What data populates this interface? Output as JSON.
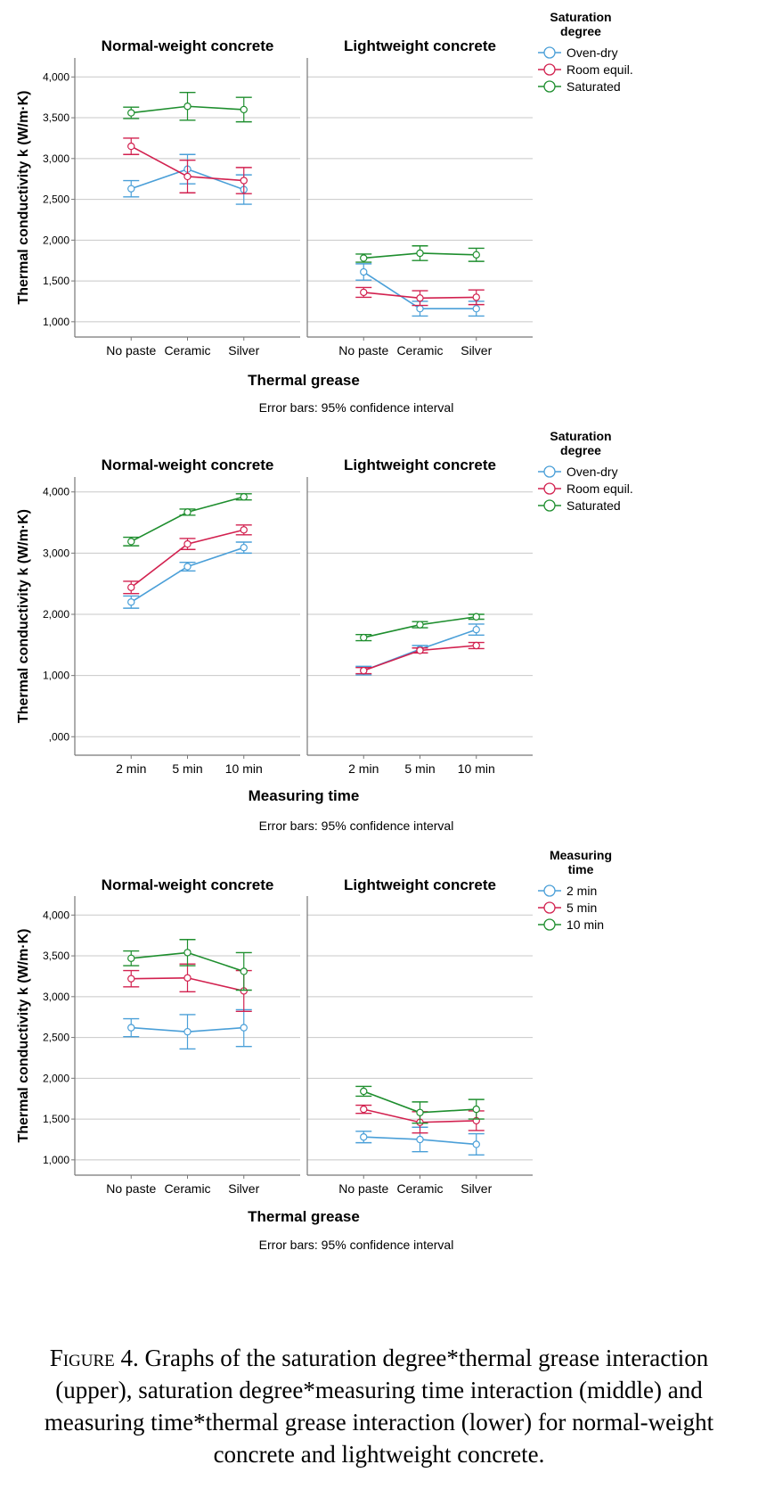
{
  "caption": {
    "label": "Figure 4.",
    "text": "Graphs of the saturation degree*thermal grease interaction (upper), saturation degree*measuring time interaction (middle) and measuring time*thermal grease interaction (lower) for normal-weight concrete and lightweight concrete."
  },
  "colors": {
    "blue": "#4a9fd8",
    "red": "#d2214f",
    "green": "#1e8e2e",
    "grid": "#c8c8c8",
    "axis": "#777777"
  },
  "chart_data": [
    {
      "type": "line",
      "ylabel": "Thermal conductivity k (W/m·K)",
      "xlabel": "Thermal grease",
      "footnote": "Error bars: 95% confidence interval",
      "legend_title": [
        "Saturation",
        "degree"
      ],
      "legend": [
        "Oven-dry",
        "Room equil.",
        "Saturated"
      ],
      "ylim": [
        900,
        4200
      ],
      "yticks": [
        1000,
        1500,
        2000,
        2500,
        3000,
        3500,
        4000
      ],
      "ytick_labels": [
        "1,000",
        "1,500",
        "2,000",
        "2,500",
        "3,000",
        "3,500",
        "4,000"
      ],
      "categories": [
        "No paste",
        "Ceramic",
        "Silver"
      ],
      "panels": [
        {
          "title": "Normal-weight concrete",
          "series": [
            {
              "name": "Oven-dry",
              "values": [
                2630,
                2870,
                2620
              ],
              "lo": [
                2530,
                2690,
                2440
              ],
              "hi": [
                2730,
                3050,
                2800
              ]
            },
            {
              "name": "Room equil.",
              "values": [
                3150,
                2780,
                2730
              ],
              "lo": [
                3050,
                2580,
                2570
              ],
              "hi": [
                3250,
                2980,
                2890
              ]
            },
            {
              "name": "Saturated",
              "values": [
                3560,
                3640,
                3600
              ],
              "lo": [
                3490,
                3470,
                3450
              ],
              "hi": [
                3630,
                3810,
                3750
              ]
            }
          ]
        },
        {
          "title": "Lightweight concrete",
          "series": [
            {
              "name": "Oven-dry",
              "values": [
                1610,
                1160,
                1160
              ],
              "lo": [
                1510,
                1070,
                1070
              ],
              "hi": [
                1710,
                1250,
                1250
              ]
            },
            {
              "name": "Room equil.",
              "values": [
                1360,
                1290,
                1300
              ],
              "lo": [
                1300,
                1200,
                1210
              ],
              "hi": [
                1420,
                1380,
                1390
              ]
            },
            {
              "name": "Saturated",
              "values": [
                1780,
                1840,
                1820
              ],
              "lo": [
                1730,
                1750,
                1740
              ],
              "hi": [
                1830,
                1930,
                1900
              ]
            }
          ]
        }
      ]
    },
    {
      "type": "line",
      "ylabel": "Thermal conductivity k (W/m·K)",
      "xlabel": "Measuring time",
      "footnote": "Error bars: 95% confidence interval",
      "legend_title": [
        "Saturation",
        "degree"
      ],
      "legend": [
        "Oven-dry",
        "Room equil.",
        "Saturated"
      ],
      "ylim": [
        -200,
        4200
      ],
      "yticks": [
        0,
        1000,
        2000,
        3000,
        4000
      ],
      "ytick_labels": [
        ",000",
        "1,000",
        "2,000",
        "3,000",
        "4,000"
      ],
      "categories": [
        "2 min",
        "5 min",
        "10 min"
      ],
      "panels": [
        {
          "title": "Normal-weight concrete",
          "series": [
            {
              "name": "Oven-dry",
              "values": [
                2200,
                2780,
                3090
              ],
              "lo": [
                2100,
                2710,
                3000
              ],
              "hi": [
                2300,
                2850,
                3180
              ]
            },
            {
              "name": "Room equil.",
              "values": [
                2440,
                3150,
                3380
              ],
              "lo": [
                2340,
                3060,
                3300
              ],
              "hi": [
                2540,
                3240,
                3460
              ]
            },
            {
              "name": "Saturated",
              "values": [
                3190,
                3670,
                3920
              ],
              "lo": [
                3120,
                3620,
                3870
              ],
              "hi": [
                3260,
                3720,
                3970
              ]
            }
          ]
        },
        {
          "title": "Lightweight concrete",
          "series": [
            {
              "name": "Oven-dry",
              "values": [
                1080,
                1430,
                1750
              ],
              "lo": [
                1010,
                1370,
                1660
              ],
              "hi": [
                1150,
                1490,
                1840
              ]
            },
            {
              "name": "Room equil.",
              "values": [
                1080,
                1410,
                1490
              ],
              "lo": [
                1030,
                1370,
                1440
              ],
              "hi": [
                1130,
                1450,
                1540
              ]
            },
            {
              "name": "Saturated",
              "values": [
                1620,
                1830,
                1960
              ],
              "lo": [
                1570,
                1780,
                1920
              ],
              "hi": [
                1670,
                1880,
                2000
              ]
            }
          ]
        }
      ]
    },
    {
      "type": "line",
      "ylabel": "Thermal conductivity k (W/m·K)",
      "xlabel": "Thermal grease",
      "footnote": "Error bars: 95% confidence interval",
      "legend_title": [
        "Measuring",
        "time"
      ],
      "legend": [
        "2 min",
        "5 min",
        "10 min"
      ],
      "ylim": [
        900,
        4200
      ],
      "yticks": [
        1000,
        1500,
        2000,
        2500,
        3000,
        3500,
        4000
      ],
      "ytick_labels": [
        "1,000",
        "1,500",
        "2,000",
        "2,500",
        "3,000",
        "3,500",
        "4,000"
      ],
      "categories": [
        "No paste",
        "Ceramic",
        "Silver"
      ],
      "panels": [
        {
          "title": "Normal-weight concrete",
          "series": [
            {
              "name": "2 min",
              "values": [
                2620,
                2570,
                2620
              ],
              "lo": [
                2510,
                2360,
                2390
              ],
              "hi": [
                2730,
                2780,
                2840
              ]
            },
            {
              "name": "5 min",
              "values": [
                3220,
                3230,
                3070
              ],
              "lo": [
                3120,
                3060,
                2820
              ],
              "hi": [
                3320,
                3400,
                3320
              ]
            },
            {
              "name": "10 min",
              "values": [
                3470,
                3540,
                3310
              ],
              "lo": [
                3380,
                3380,
                3080
              ],
              "hi": [
                3560,
                3700,
                3540
              ]
            }
          ]
        },
        {
          "title": "Lightweight concrete",
          "series": [
            {
              "name": "2 min",
              "values": [
                1280,
                1250,
                1190
              ],
              "lo": [
                1210,
                1100,
                1060
              ],
              "hi": [
                1350,
                1400,
                1320
              ]
            },
            {
              "name": "5 min",
              "values": [
                1620,
                1460,
                1480
              ],
              "lo": [
                1570,
                1330,
                1360
              ],
              "hi": [
                1670,
                1590,
                1600
              ]
            },
            {
              "name": "10 min",
              "values": [
                1840,
                1580,
                1620
              ],
              "lo": [
                1780,
                1450,
                1500
              ],
              "hi": [
                1900,
                1710,
                1740
              ]
            }
          ]
        }
      ]
    }
  ]
}
